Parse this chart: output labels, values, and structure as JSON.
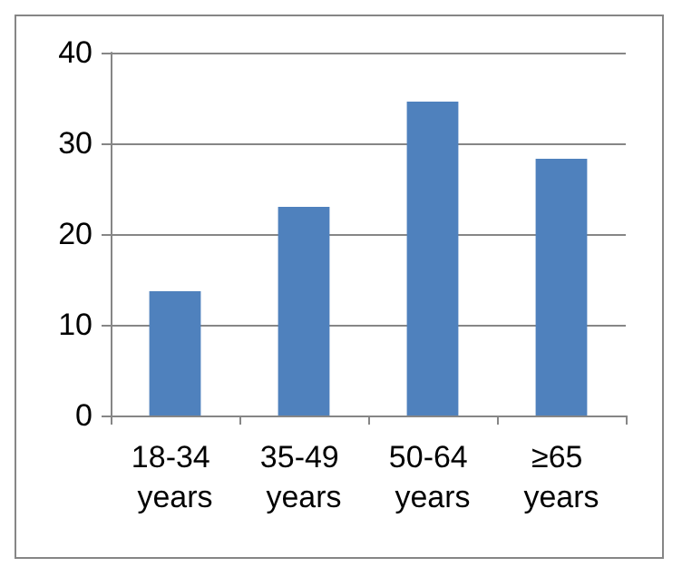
{
  "chart_data": {
    "type": "bar",
    "categories": [
      "18-34 years",
      "35-49 years",
      "50-64 years",
      "≥65 years"
    ],
    "values": [
      13.7,
      23,
      34.6,
      28.3
    ],
    "color": "#4f81bd",
    "ylim": [
      0,
      40
    ],
    "yticks": [
      0,
      10,
      20,
      30,
      40
    ],
    "grid": "y"
  }
}
